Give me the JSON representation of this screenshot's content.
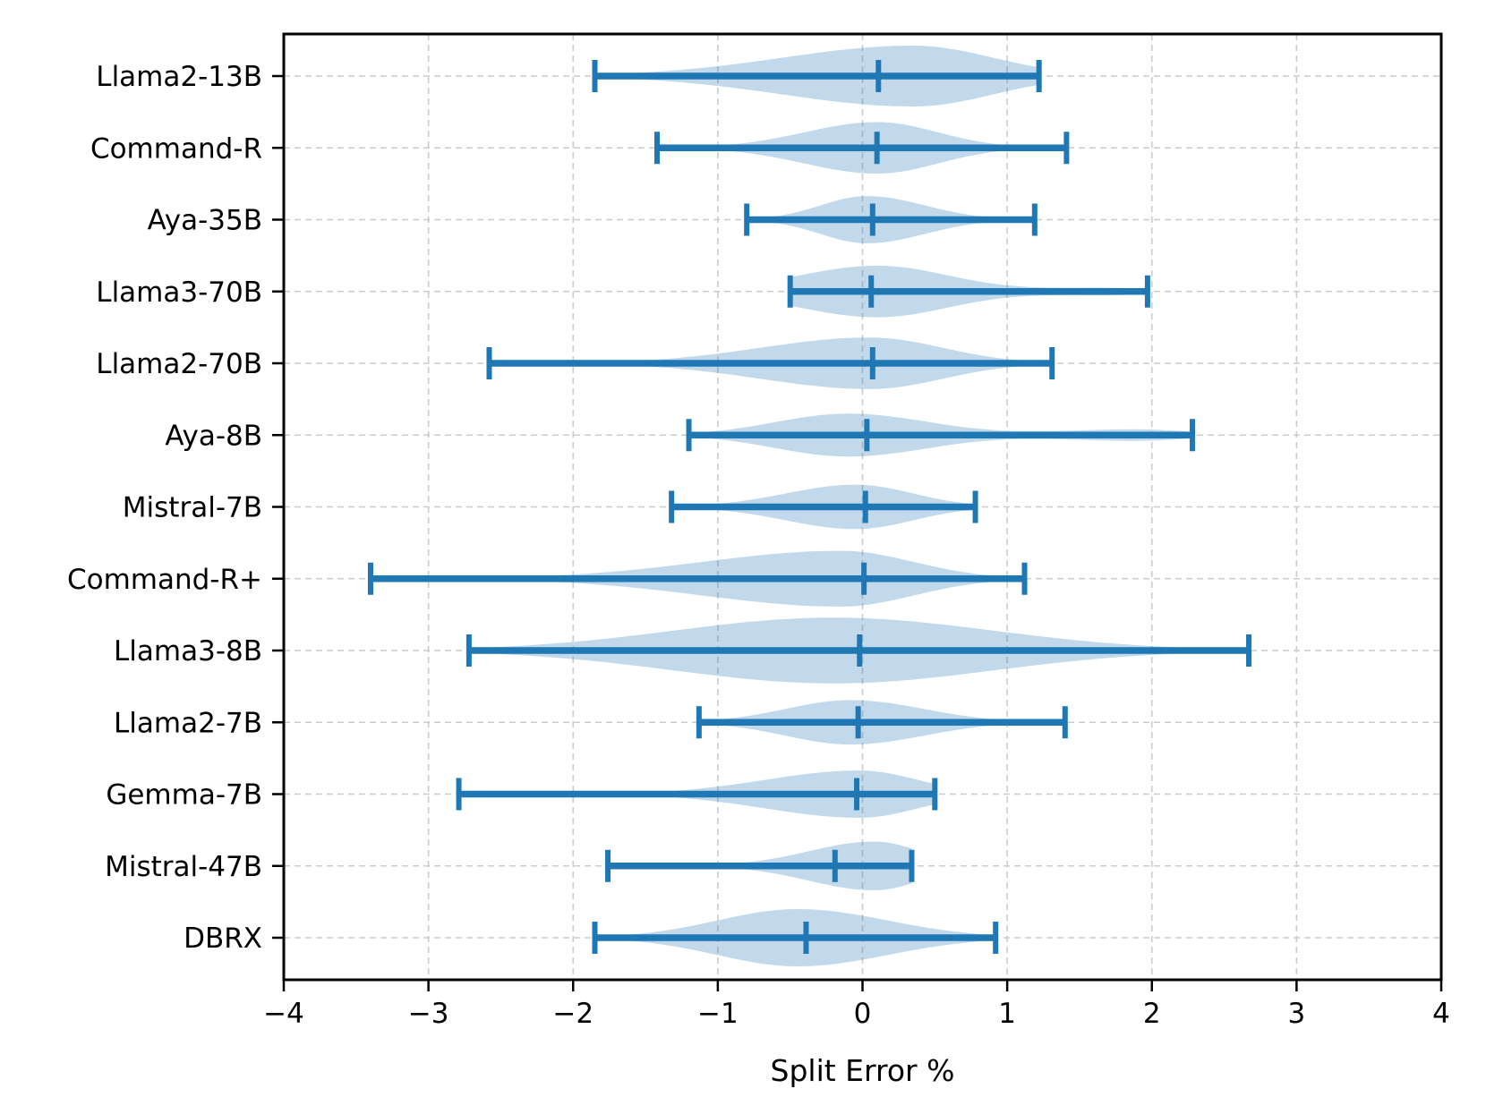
{
  "chart_data": {
    "type": "violin",
    "orientation": "horizontal",
    "title": "",
    "xlabel": "Split Error %",
    "ylabel": "",
    "xlim": [
      -4,
      4
    ],
    "xticks": [
      -4,
      -3,
      -2,
      -1,
      0,
      1,
      2,
      3,
      4
    ],
    "xtick_labels": [
      "−4",
      "−3",
      "−2",
      "−1",
      "0",
      "1",
      "2",
      "3",
      "4"
    ],
    "grid": true,
    "legend": "none",
    "series": [
      {
        "label": "Llama2-13B",
        "whisker_min": -1.85,
        "mean": 0.11,
        "whisker_max": 1.22,
        "shape": [
          {
            "pos": 0.35,
            "sigL": 0.9,
            "sigR": 0.55,
            "amp": 0.85
          }
        ]
      },
      {
        "label": "Command-R",
        "whisker_min": -1.42,
        "mean": 0.1,
        "whisker_max": 1.41,
        "shape": [
          {
            "pos": 0.1,
            "sigL": 0.5,
            "sigR": 0.42,
            "amp": 0.72
          }
        ]
      },
      {
        "label": "Aya-35B",
        "whisker_min": -0.8,
        "mean": 0.07,
        "whisker_max": 1.19,
        "shape": [
          {
            "pos": 0.03,
            "sigL": 0.32,
            "sigR": 0.4,
            "amp": 0.66
          }
        ]
      },
      {
        "label": "Llama3-70B",
        "whisker_min": -0.5,
        "mean": 0.06,
        "whisker_max": 1.97,
        "shape": [
          {
            "pos": 0.1,
            "sigL": 0.55,
            "sigR": 0.5,
            "amp": 0.72
          },
          {
            "pos": 1.7,
            "sigL": 0.45,
            "sigR": 0.3,
            "amp": 0.1
          }
        ]
      },
      {
        "label": "Llama2-70B",
        "whisker_min": -2.58,
        "mean": 0.07,
        "whisker_max": 1.31,
        "shape": [
          {
            "pos": 0.05,
            "sigL": 0.75,
            "sigR": 0.5,
            "amp": 0.72
          }
        ]
      },
      {
        "label": "Aya-8B",
        "whisker_min": -1.2,
        "mean": 0.03,
        "whisker_max": 2.28,
        "shape": [
          {
            "pos": -0.1,
            "sigL": 0.5,
            "sigR": 0.55,
            "amp": 0.6
          },
          {
            "pos": 1.9,
            "sigL": 0.55,
            "sigR": 0.35,
            "amp": 0.16
          }
        ]
      },
      {
        "label": "Mistral-7B",
        "whisker_min": -1.32,
        "mean": 0.02,
        "whisker_max": 0.78,
        "shape": [
          {
            "pos": -0.05,
            "sigL": 0.48,
            "sigR": 0.4,
            "amp": 0.62
          }
        ]
      },
      {
        "label": "Command-R+",
        "whisker_min": -3.4,
        "mean": 0.01,
        "whisker_max": 1.12,
        "shape": [
          {
            "pos": -0.15,
            "sigL": 0.95,
            "sigR": 0.5,
            "amp": 0.78
          }
        ]
      },
      {
        "label": "Llama3-8B",
        "whisker_min": -2.72,
        "mean": -0.02,
        "whisker_max": 2.67,
        "shape": [
          {
            "pos": -0.2,
            "sigL": 1.1,
            "sigR": 1.1,
            "amp": 0.92
          }
        ]
      },
      {
        "label": "Llama2-7B",
        "whisker_min": -1.13,
        "mean": -0.03,
        "whisker_max": 1.4,
        "shape": [
          {
            "pos": -0.08,
            "sigL": 0.45,
            "sigR": 0.5,
            "amp": 0.62
          }
        ]
      },
      {
        "label": "Gemma-7B",
        "whisker_min": -2.79,
        "mean": -0.04,
        "whisker_max": 0.5,
        "shape": [
          {
            "pos": -0.02,
            "sigL": 0.65,
            "sigR": 0.4,
            "amp": 0.66
          }
        ]
      },
      {
        "label": "Mistral-47B",
        "whisker_min": -1.76,
        "mean": -0.19,
        "whisker_max": 0.34,
        "shape": [
          {
            "pos": 0.08,
            "sigL": 0.45,
            "sigR": 0.32,
            "amp": 0.68
          }
        ]
      },
      {
        "label": "DBRX",
        "whisker_min": -1.85,
        "mean": -0.39,
        "whisker_max": 0.92,
        "shape": [
          {
            "pos": -0.45,
            "sigL": 0.55,
            "sigR": 0.62,
            "amp": 0.8
          }
        ]
      }
    ]
  },
  "colors": {
    "line_blue": "#1f77b4",
    "violin_fill": "rgba(31,119,180,0.28)",
    "grid": "#cccccc",
    "frame": "#000000",
    "background": "#ffffff",
    "text": "#000000"
  }
}
